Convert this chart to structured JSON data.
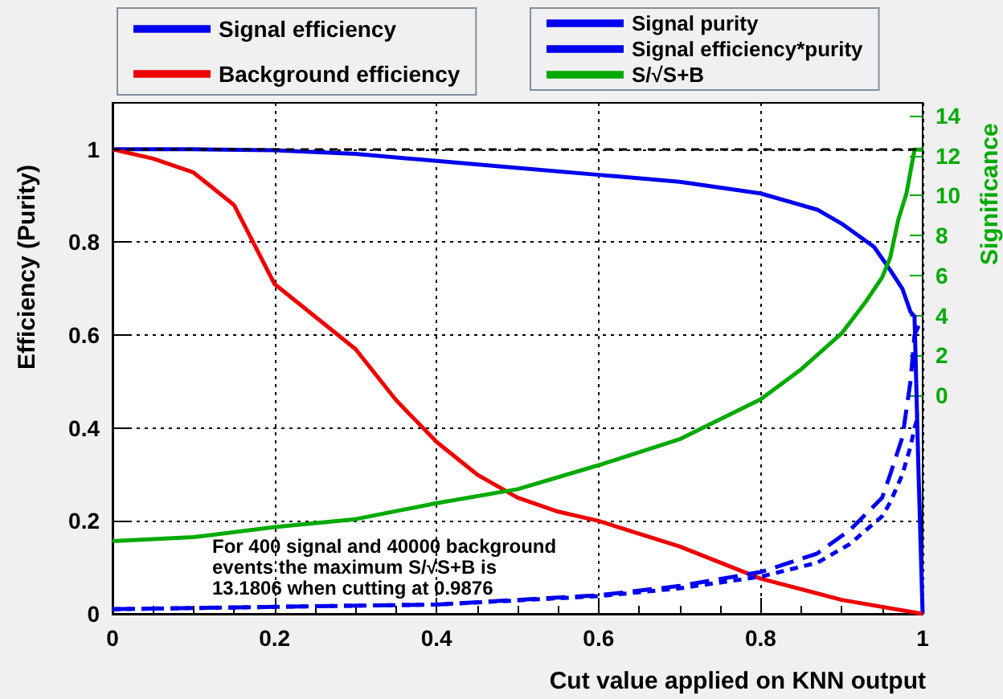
{
  "chart_data": {
    "type": "line",
    "xlabel": "Cut value applied on KNN output",
    "ylabel": "Efficiency (Purity)",
    "y2label": "Significance",
    "xlim": [
      0,
      1
    ],
    "xticks": [
      0,
      0.2,
      0.4,
      0.6,
      0.8,
      1
    ],
    "ylim": [
      0,
      1.1
    ],
    "yticks": [
      0,
      0.2,
      0.4,
      0.6,
      0.8,
      1
    ],
    "y2lim": [
      -10.94,
      14.64
    ],
    "y2ticks": [
      0,
      2,
      4,
      6,
      8,
      10,
      12,
      14
    ],
    "grid": true,
    "legend": "top",
    "ref_lines": [
      {
        "axis": "y",
        "value": 1,
        "color": "#000000",
        "line_style": "dotted"
      }
    ],
    "series": [
      {
        "name": "Signal efficiency",
        "color": "#0000ee",
        "line_style": "solid",
        "x": [
          0,
          0.1,
          0.2,
          0.3,
          0.4,
          0.5,
          0.6,
          0.7,
          0.8,
          0.87,
          0.9,
          0.94,
          0.96,
          0.975,
          0.985,
          0.99,
          0.995,
          1
        ],
        "values": [
          1,
          1,
          0.998,
          0.99,
          0.975,
          0.96,
          0.945,
          0.93,
          0.905,
          0.87,
          0.84,
          0.79,
          0.74,
          0.7,
          0.65,
          0.64,
          0.3,
          0
        ]
      },
      {
        "name": "Background efficiency",
        "color": "#ee0000",
        "line_style": "solid",
        "x": [
          0,
          0.05,
          0.1,
          0.15,
          0.2,
          0.25,
          0.3,
          0.35,
          0.4,
          0.45,
          0.5,
          0.55,
          0.6,
          0.7,
          0.8,
          0.9,
          1
        ],
        "values": [
          1,
          0.98,
          0.95,
          0.88,
          0.71,
          0.64,
          0.57,
          0.46,
          0.37,
          0.3,
          0.25,
          0.22,
          0.2,
          0.145,
          0.076,
          0.03,
          0
        ]
      },
      {
        "name": "Signal purity",
        "color": "#0000ee",
        "line_style": "dashed",
        "x": [
          0,
          0.2,
          0.4,
          0.6,
          0.7,
          0.8,
          0.87,
          0.91,
          0.95,
          0.96,
          0.975,
          0.985,
          0.99,
          0.995
        ],
        "values": [
          0.01,
          0.015,
          0.02,
          0.04,
          0.06,
          0.09,
          0.13,
          0.18,
          0.25,
          0.3,
          0.38,
          0.5,
          0.6,
          0.62
        ]
      },
      {
        "name": "Signal efficiency*purity",
        "color": "#0000ee",
        "line_style": "dotted",
        "x": [
          0,
          0.2,
          0.4,
          0.6,
          0.7,
          0.8,
          0.87,
          0.91,
          0.95,
          0.96,
          0.975,
          0.985,
          0.99,
          0.995
        ],
        "values": [
          0.01,
          0.015,
          0.02,
          0.038,
          0.055,
          0.08,
          0.11,
          0.15,
          0.21,
          0.24,
          0.3,
          0.36,
          0.4,
          0.43
        ]
      },
      {
        "name": "S/√S+B",
        "color": "#00aa00",
        "line_style": "solid",
        "axis": "y2",
        "x": [
          0,
          0.1,
          0.2,
          0.3,
          0.4,
          0.5,
          0.6,
          0.7,
          0.8,
          0.85,
          0.9,
          0.93,
          0.95,
          0.96,
          0.97,
          0.98,
          0.99,
          1
        ],
        "values": [
          -7.3,
          -7.1,
          -6.6,
          -6.2,
          -5.4,
          -4.7,
          -3.5,
          -2.2,
          -0.2,
          1.3,
          3.1,
          4.7,
          5.9,
          6.9,
          8.8,
          10.1,
          12.3,
          12.3
        ]
      }
    ],
    "annotations": [
      "For 400 signal and 40000 background",
      "events the maximum S/√S+B is",
      "13.1806 when cutting at 0.9876"
    ]
  }
}
